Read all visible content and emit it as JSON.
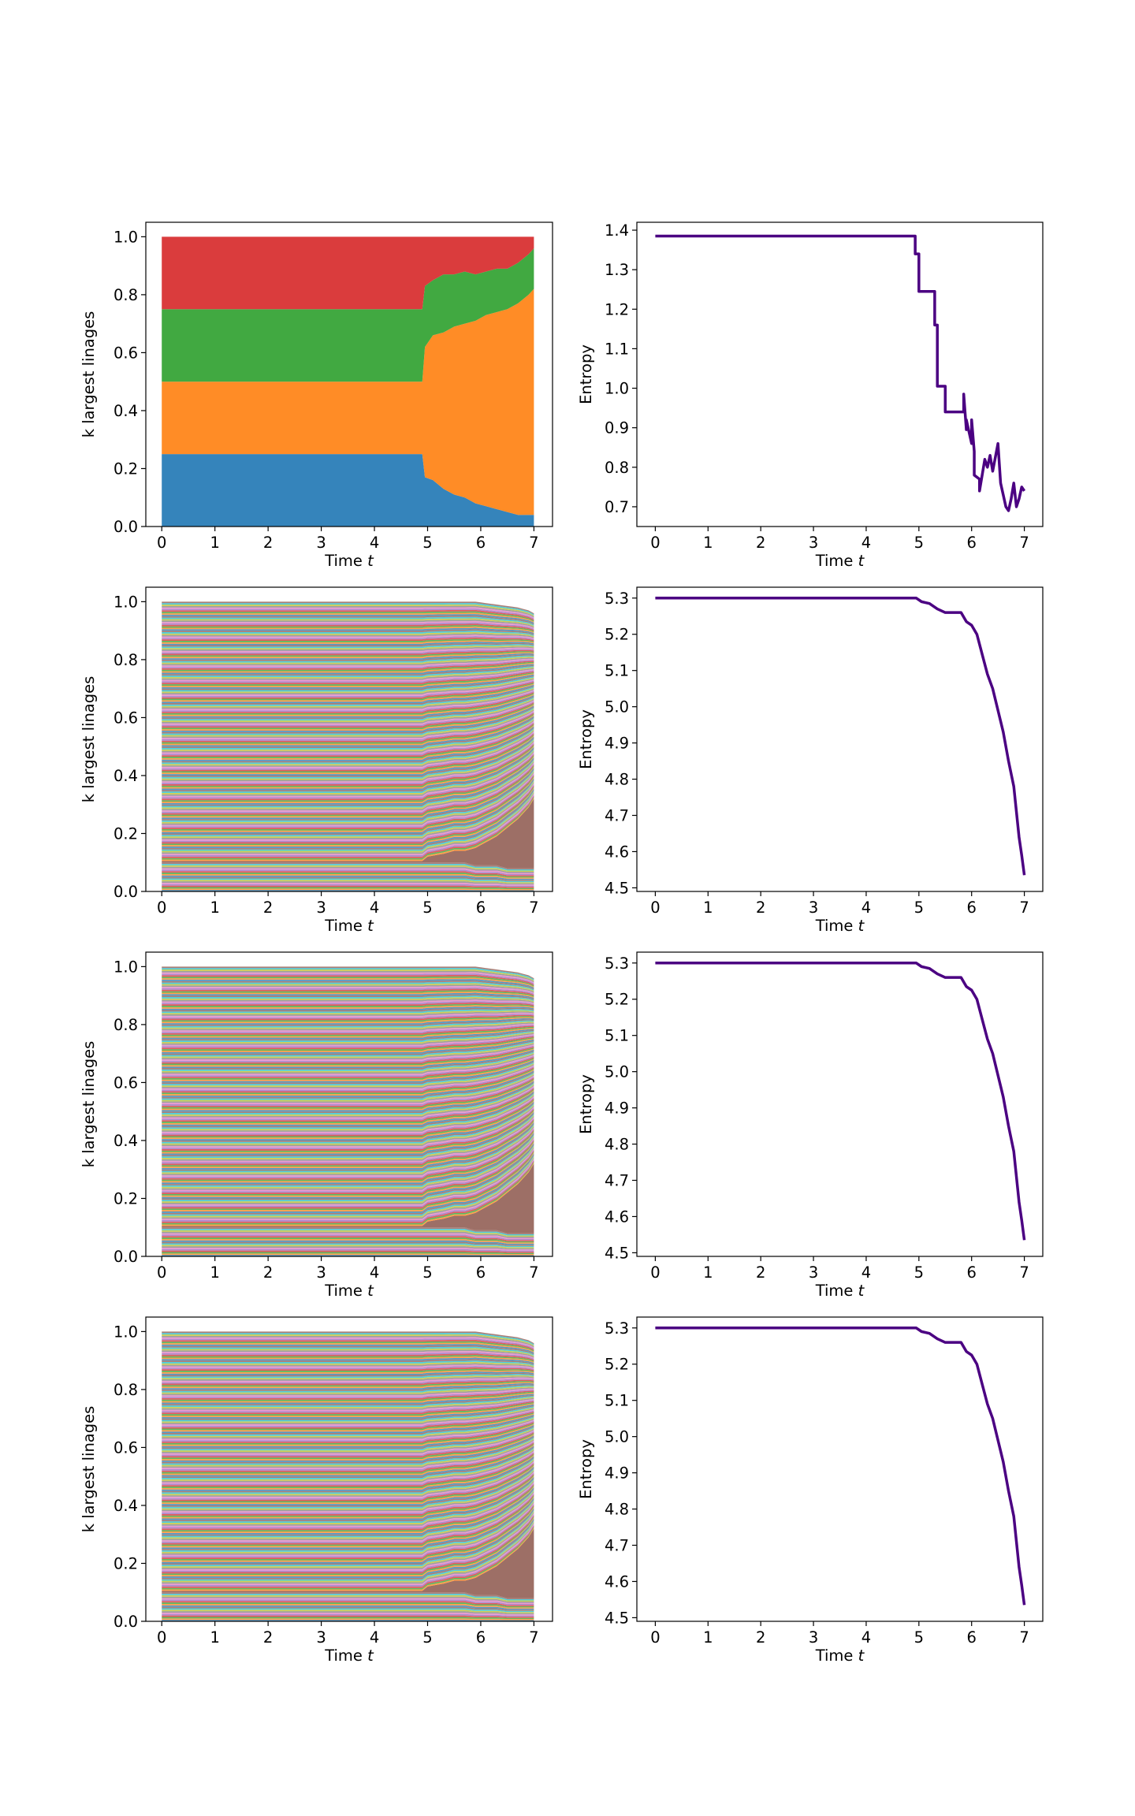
{
  "colors": {
    "tab": [
      "#1f77b4",
      "#ff7f0e",
      "#2ca02c",
      "#d62728",
      "#9467bd",
      "#8c564b",
      "#e377c2",
      "#7f7f7f",
      "#bcbd22",
      "#17becf"
    ],
    "entropy_line": "#4b0082",
    "axes_frame": "#000000",
    "background": "#ffffff"
  },
  "chart_data": [
    {
      "type": "area",
      "panel": "row1-left",
      "xlabel": "Time",
      "xlabel_var": "t",
      "ylabel": "k largest linages",
      "xlim": [
        -0.3,
        7.35
      ],
      "ylim": [
        0,
        1.05
      ],
      "xticks": [
        0,
        1,
        2,
        3,
        4,
        5,
        6,
        7
      ],
      "yticks": [
        0.0,
        0.2,
        0.4,
        0.6,
        0.8,
        1.0
      ],
      "ytick_labels": [
        "0.0",
        "0.2",
        "0.4",
        "0.6",
        "0.8",
        "1.0"
      ],
      "x": [
        0,
        4.9,
        4.95,
        5.1,
        5.3,
        5.5,
        5.7,
        5.9,
        6.1,
        6.3,
        6.5,
        6.7,
        6.9,
        7.0
      ],
      "series": [
        {
          "values": [
            0.25,
            0.25,
            0.17,
            0.16,
            0.13,
            0.11,
            0.1,
            0.08,
            0.07,
            0.06,
            0.05,
            0.04,
            0.04,
            0.04
          ]
        },
        {
          "values": [
            0.25,
            0.25,
            0.45,
            0.5,
            0.54,
            0.58,
            0.6,
            0.63,
            0.66,
            0.68,
            0.7,
            0.73,
            0.76,
            0.78
          ]
        },
        {
          "values": [
            0.25,
            0.25,
            0.21,
            0.19,
            0.2,
            0.18,
            0.18,
            0.16,
            0.15,
            0.15,
            0.14,
            0.14,
            0.14,
            0.14
          ]
        },
        {
          "values": [
            0.25,
            0.25,
            0.17,
            0.15,
            0.13,
            0.13,
            0.12,
            0.13,
            0.12,
            0.11,
            0.11,
            0.09,
            0.06,
            0.04
          ]
        }
      ]
    },
    {
      "type": "line",
      "panel": "row1-right",
      "xlabel": "Time",
      "xlabel_var": "t",
      "ylabel": "Entropy",
      "xlim": [
        -0.35,
        7.35
      ],
      "ylim": [
        0.65,
        1.42
      ],
      "xticks": [
        0,
        1,
        2,
        3,
        4,
        5,
        6,
        7
      ],
      "yticks": [
        0.7,
        0.8,
        0.9,
        1.0,
        1.1,
        1.2,
        1.3,
        1.4
      ],
      "ytick_labels": [
        "0.7",
        "0.8",
        "0.9",
        "1.0",
        "1.1",
        "1.2",
        "1.3",
        "1.4"
      ],
      "x": [
        0,
        4.93,
        4.93,
        5.0,
        5.0,
        5.3,
        5.3,
        5.35,
        5.35,
        5.5,
        5.5,
        5.85,
        5.85,
        5.9,
        5.9,
        6.0,
        6.0,
        6.05,
        6.05,
        6.15,
        6.15,
        6.25,
        6.3,
        6.35,
        6.4,
        6.5,
        6.55,
        6.6,
        6.65,
        6.7,
        6.75,
        6.8,
        6.85,
        6.9,
        6.95,
        7.0
      ],
      "y": [
        1.385,
        1.385,
        1.34,
        1.34,
        1.245,
        1.245,
        1.16,
        1.16,
        1.005,
        1.005,
        0.94,
        0.94,
        0.985,
        0.895,
        0.92,
        0.86,
        0.92,
        0.84,
        0.78,
        0.77,
        0.74,
        0.82,
        0.8,
        0.83,
        0.79,
        0.86,
        0.76,
        0.73,
        0.7,
        0.69,
        0.72,
        0.76,
        0.7,
        0.72,
        0.75,
        0.74
      ]
    },
    {
      "type": "area",
      "panel": "row2-left",
      "xlabel": "Time",
      "xlabel_var": "t",
      "ylabel": "k largest linages",
      "xlim": [
        -0.3,
        7.35
      ],
      "ylim": [
        0,
        1.05
      ],
      "xticks": [
        0,
        1,
        2,
        3,
        4,
        5,
        6,
        7
      ],
      "yticks": [
        0.0,
        0.2,
        0.4,
        0.6,
        0.8,
        1.0
      ],
      "ytick_labels": [
        "0.0",
        "0.2",
        "0.4",
        "0.6",
        "0.8",
        "1.0"
      ],
      "lineage_count": 200,
      "x": [
        0,
        4.9,
        5.0,
        5.3,
        5.5,
        5.7,
        5.9,
        6.1,
        6.3,
        6.5,
        6.7,
        6.9,
        7.0
      ],
      "dominant_band": {
        "lower": [
          0.1,
          0.1,
          0.1,
          0.1,
          0.1,
          0.1,
          0.09,
          0.09,
          0.09,
          0.08,
          0.08,
          0.08,
          0.08
        ],
        "upper": [
          0.105,
          0.105,
          0.12,
          0.13,
          0.14,
          0.14,
          0.15,
          0.17,
          0.19,
          0.22,
          0.25,
          0.29,
          0.32
        ]
      },
      "upper_compression_top": [
        1.0,
        1.0,
        1.0,
        1.0,
        1.0,
        1.0,
        1.0,
        0.995,
        0.99,
        0.985,
        0.98,
        0.97,
        0.96
      ]
    },
    {
      "type": "line",
      "panel": "row2-right",
      "xlabel": "Time",
      "xlabel_var": "t",
      "ylabel": "Entropy",
      "xlim": [
        -0.35,
        7.35
      ],
      "ylim": [
        4.49,
        5.33
      ],
      "xticks": [
        0,
        1,
        2,
        3,
        4,
        5,
        6,
        7
      ],
      "yticks": [
        4.5,
        4.6,
        4.7,
        4.8,
        4.9,
        5.0,
        5.1,
        5.2,
        5.3
      ],
      "ytick_labels": [
        "4.5",
        "4.6",
        "4.7",
        "4.8",
        "4.9",
        "5.0",
        "5.1",
        "5.2",
        "5.3"
      ],
      "x": [
        0,
        4.95,
        5.05,
        5.2,
        5.35,
        5.5,
        5.8,
        5.9,
        6.0,
        6.1,
        6.2,
        6.3,
        6.4,
        6.5,
        6.6,
        6.7,
        6.8,
        6.9,
        6.95,
        7.0
      ],
      "y": [
        5.3,
        5.3,
        5.29,
        5.285,
        5.27,
        5.26,
        5.26,
        5.235,
        5.225,
        5.2,
        5.145,
        5.09,
        5.05,
        4.99,
        4.93,
        4.85,
        4.78,
        4.64,
        4.59,
        4.535
      ]
    },
    {
      "type": "area",
      "panel": "row3-left",
      "xlabel": "Time",
      "xlabel_var": "t",
      "ylabel": "k largest linages",
      "xlim": [
        -0.3,
        7.35
      ],
      "ylim": [
        0,
        1.05
      ],
      "xticks": [
        0,
        1,
        2,
        3,
        4,
        5,
        6,
        7
      ],
      "yticks": [
        0.0,
        0.2,
        0.4,
        0.6,
        0.8,
        1.0
      ],
      "ytick_labels": [
        "0.0",
        "0.2",
        "0.4",
        "0.6",
        "0.8",
        "1.0"
      ],
      "lineage_count": 200,
      "x": [
        0,
        4.9,
        5.0,
        5.3,
        5.5,
        5.7,
        5.9,
        6.1,
        6.3,
        6.5,
        6.7,
        6.9,
        7.0
      ],
      "dominant_band": {
        "lower": [
          0.1,
          0.1,
          0.1,
          0.1,
          0.1,
          0.1,
          0.09,
          0.09,
          0.09,
          0.08,
          0.08,
          0.08,
          0.08
        ],
        "upper": [
          0.105,
          0.105,
          0.12,
          0.13,
          0.14,
          0.14,
          0.15,
          0.17,
          0.19,
          0.22,
          0.25,
          0.29,
          0.32
        ]
      },
      "upper_compression_top": [
        1.0,
        1.0,
        1.0,
        1.0,
        1.0,
        1.0,
        1.0,
        0.995,
        0.99,
        0.985,
        0.98,
        0.97,
        0.96
      ]
    },
    {
      "type": "line",
      "panel": "row3-right",
      "xlabel": "Time",
      "xlabel_var": "t",
      "ylabel": "Entropy",
      "xlim": [
        -0.35,
        7.35
      ],
      "ylim": [
        4.49,
        5.33
      ],
      "xticks": [
        0,
        1,
        2,
        3,
        4,
        5,
        6,
        7
      ],
      "yticks": [
        4.5,
        4.6,
        4.7,
        4.8,
        4.9,
        5.0,
        5.1,
        5.2,
        5.3
      ],
      "ytick_labels": [
        "4.5",
        "4.6",
        "4.7",
        "4.8",
        "4.9",
        "5.0",
        "5.1",
        "5.2",
        "5.3"
      ],
      "x": [
        0,
        4.95,
        5.05,
        5.2,
        5.35,
        5.5,
        5.8,
        5.9,
        6.0,
        6.1,
        6.2,
        6.3,
        6.4,
        6.5,
        6.6,
        6.7,
        6.8,
        6.9,
        6.95,
        7.0
      ],
      "y": [
        5.3,
        5.3,
        5.29,
        5.285,
        5.27,
        5.26,
        5.26,
        5.235,
        5.225,
        5.2,
        5.145,
        5.09,
        5.05,
        4.99,
        4.93,
        4.85,
        4.78,
        4.64,
        4.59,
        4.535
      ]
    },
    {
      "type": "area",
      "panel": "row4-left",
      "xlabel": "Time",
      "xlabel_var": "t",
      "ylabel": "k largest linages",
      "xlim": [
        -0.3,
        7.35
      ],
      "ylim": [
        0,
        1.05
      ],
      "xticks": [
        0,
        1,
        2,
        3,
        4,
        5,
        6,
        7
      ],
      "yticks": [
        0.0,
        0.2,
        0.4,
        0.6,
        0.8,
        1.0
      ],
      "ytick_labels": [
        "0.0",
        "0.2",
        "0.4",
        "0.6",
        "0.8",
        "1.0"
      ],
      "lineage_count": 200,
      "x": [
        0,
        4.9,
        5.0,
        5.3,
        5.5,
        5.7,
        5.9,
        6.1,
        6.3,
        6.5,
        6.7,
        6.9,
        7.0
      ],
      "dominant_band": {
        "lower": [
          0.1,
          0.1,
          0.1,
          0.1,
          0.1,
          0.1,
          0.09,
          0.09,
          0.09,
          0.08,
          0.08,
          0.08,
          0.08
        ],
        "upper": [
          0.105,
          0.105,
          0.12,
          0.13,
          0.14,
          0.14,
          0.15,
          0.17,
          0.19,
          0.22,
          0.25,
          0.29,
          0.32
        ]
      },
      "upper_compression_top": [
        1.0,
        1.0,
        1.0,
        1.0,
        1.0,
        1.0,
        1.0,
        0.995,
        0.99,
        0.985,
        0.98,
        0.97,
        0.96
      ]
    },
    {
      "type": "line",
      "panel": "row4-right",
      "xlabel": "Time",
      "xlabel_var": "t",
      "ylabel": "Entropy",
      "xlim": [
        -0.35,
        7.35
      ],
      "ylim": [
        4.49,
        5.33
      ],
      "xticks": [
        0,
        1,
        2,
        3,
        4,
        5,
        6,
        7
      ],
      "yticks": [
        4.5,
        4.6,
        4.7,
        4.8,
        4.9,
        5.0,
        5.1,
        5.2,
        5.3
      ],
      "ytick_labels": [
        "4.5",
        "4.6",
        "4.7",
        "4.8",
        "4.9",
        "5.0",
        "5.1",
        "5.2",
        "5.3"
      ],
      "x": [
        0,
        4.95,
        5.05,
        5.2,
        5.35,
        5.5,
        5.8,
        5.9,
        6.0,
        6.1,
        6.2,
        6.3,
        6.4,
        6.5,
        6.6,
        6.7,
        6.8,
        6.9,
        6.95,
        7.0
      ],
      "y": [
        5.3,
        5.3,
        5.29,
        5.285,
        5.27,
        5.26,
        5.26,
        5.235,
        5.225,
        5.2,
        5.145,
        5.09,
        5.05,
        4.99,
        4.93,
        4.85,
        4.78,
        4.64,
        4.59,
        4.535
      ]
    }
  ]
}
